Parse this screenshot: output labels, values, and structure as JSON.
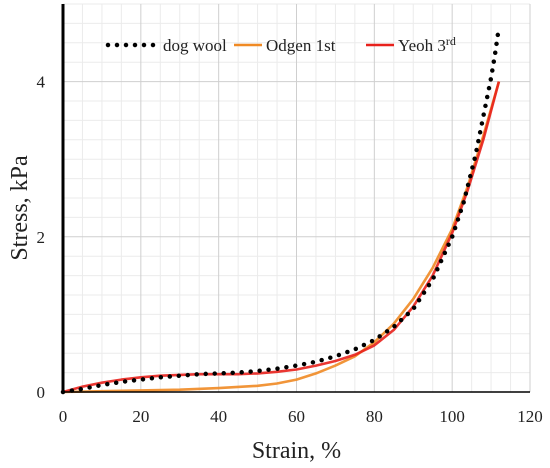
{
  "chart_data": {
    "type": "line",
    "title": "",
    "xlabel": "Strain, %",
    "ylabel": "Stress, kPa",
    "xlim": [
      0,
      120
    ],
    "ylim": [
      0,
      5
    ],
    "xticks": [
      0,
      20,
      40,
      60,
      80,
      100,
      120
    ],
    "yticks": [
      0,
      2,
      4
    ],
    "x_tick_labels": [
      "0",
      "20",
      "40",
      "60",
      "80",
      "100",
      "120"
    ],
    "y_tick_labels": [
      "0",
      "2",
      "4"
    ],
    "grid": true,
    "legend_position": "top",
    "series": [
      {
        "name": "dog wool",
        "color": "#000000",
        "style": "dotted",
        "x": [
          0,
          5,
          10,
          15,
          20,
          25,
          30,
          35,
          40,
          45,
          50,
          55,
          60,
          65,
          70,
          75,
          80,
          85,
          90,
          95,
          100,
          103,
          106,
          108,
          110,
          111,
          112
        ],
        "y": [
          0.0,
          0.04,
          0.09,
          0.13,
          0.16,
          0.19,
          0.21,
          0.23,
          0.24,
          0.25,
          0.27,
          0.3,
          0.34,
          0.39,
          0.46,
          0.55,
          0.67,
          0.84,
          1.07,
          1.45,
          2.0,
          2.45,
          3.05,
          3.55,
          4.05,
          4.35,
          4.7
        ]
      },
      {
        "name": "Odgen 1st",
        "legend_label": "Odgen 1st",
        "color": "#f08a24",
        "style": "solid",
        "x": [
          0,
          10,
          20,
          30,
          40,
          50,
          55,
          60,
          65,
          70,
          75,
          80,
          85,
          90,
          95,
          100,
          104,
          108,
          112
        ],
        "y": [
          0.0,
          0.01,
          0.02,
          0.03,
          0.05,
          0.08,
          0.11,
          0.16,
          0.24,
          0.34,
          0.46,
          0.64,
          0.88,
          1.2,
          1.6,
          2.1,
          2.65,
          3.3,
          4.0
        ]
      },
      {
        "name": "Yeoh 3rd",
        "legend_label": "Yeoh 3",
        "legend_sup": "rd",
        "color": "#e8211c",
        "style": "solid",
        "x": [
          0,
          5,
          10,
          15,
          20,
          25,
          30,
          35,
          40,
          45,
          50,
          55,
          60,
          65,
          70,
          75,
          80,
          85,
          90,
          95,
          100,
          104,
          108,
          112
        ],
        "y": [
          0.0,
          0.07,
          0.12,
          0.16,
          0.19,
          0.21,
          0.22,
          0.23,
          0.23,
          0.23,
          0.24,
          0.26,
          0.29,
          0.34,
          0.4,
          0.48,
          0.6,
          0.8,
          1.1,
          1.5,
          2.05,
          2.6,
          3.25,
          4.0
        ]
      }
    ]
  }
}
